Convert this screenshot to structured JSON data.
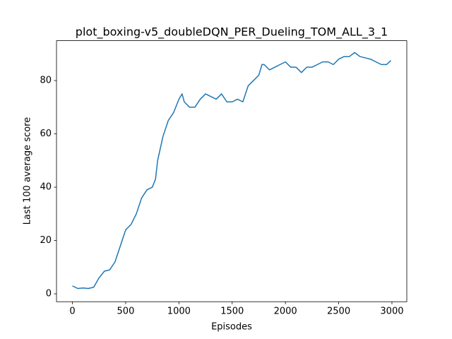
{
  "chart_data": {
    "type": "line",
    "title": "plot_boxing-v5_doubleDQN_PER_Dueling_TOM_ALL_3_1",
    "x_label": "Episodes",
    "y_label": "Last 100 average score",
    "x": [
      0,
      50,
      100,
      150,
      200,
      250,
      300,
      350,
      400,
      450,
      500,
      550,
      600,
      650,
      700,
      750,
      780,
      800,
      850,
      900,
      950,
      1000,
      1030,
      1050,
      1100,
      1150,
      1200,
      1250,
      1300,
      1350,
      1400,
      1450,
      1500,
      1550,
      1600,
      1650,
      1700,
      1750,
      1780,
      1800,
      1850,
      1900,
      1950,
      2000,
      2050,
      2100,
      2150,
      2200,
      2250,
      2300,
      2350,
      2400,
      2450,
      2500,
      2550,
      2600,
      2650,
      2700,
      2750,
      2800,
      2850,
      2900,
      2950,
      2990
    ],
    "series": [
      {
        "name": "score",
        "color": "#1f77b4",
        "values": [
          3,
          2,
          2.2,
          2,
          2.5,
          6,
          8.5,
          9,
          12,
          18,
          24,
          26,
          30,
          36,
          39,
          40,
          43,
          50,
          59,
          65,
          68,
          73,
          75,
          72,
          70,
          70,
          73,
          75,
          74,
          73,
          75,
          72,
          72,
          73,
          72,
          78,
          80,
          82,
          86,
          86,
          84,
          85,
          86,
          87,
          85,
          85,
          83,
          85,
          85,
          86,
          87,
          87,
          86,
          88,
          89,
          89,
          90.5,
          89,
          88.5,
          88,
          87,
          86,
          86,
          87.5
        ]
      }
    ],
    "xlim": [
      -149.5,
      3139.5
    ],
    "xticks": [
      0,
      500,
      1000,
      1500,
      2000,
      2500,
      3000
    ],
    "ylim": [
      -2.95,
      94.95
    ],
    "yticks": [
      0,
      20,
      40,
      60,
      80
    ],
    "grid": false
  }
}
